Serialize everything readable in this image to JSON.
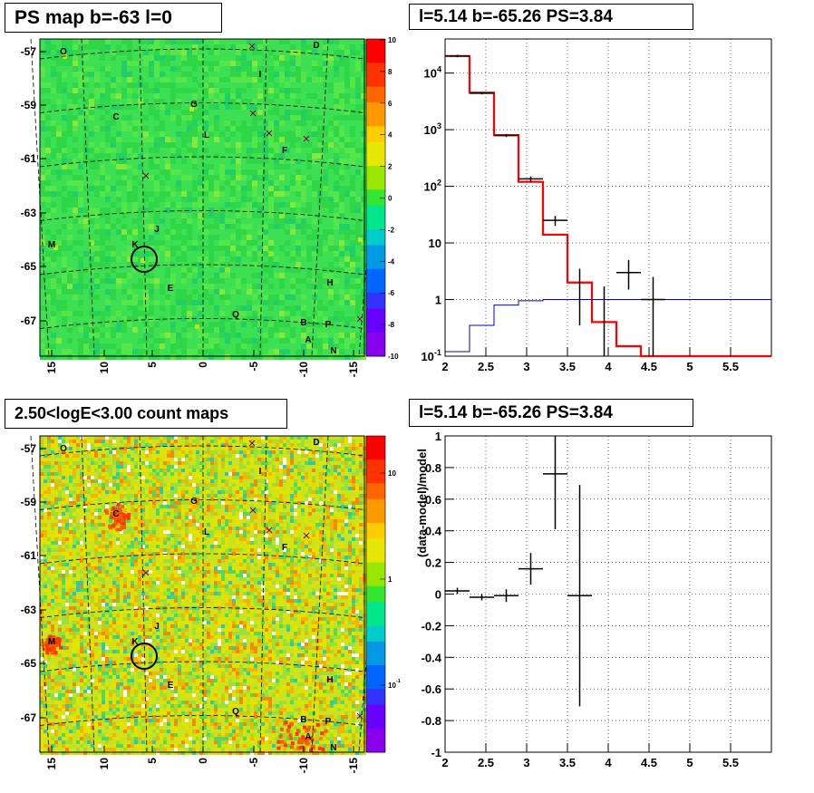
{
  "titles": {
    "ps_map": "PS map b=-63 l=0",
    "spectrum": "l=5.14 b=-65.26 PS=3.84",
    "count_map": "2.50<logE<3.00 count maps",
    "residual": "l=5.14 b=-65.26 PS=3.84"
  },
  "residual_ylabel": "(data-model)/model",
  "colors": {
    "model_red": "#ff0000",
    "model_blue": "#0000cc",
    "data_black": "#000000"
  },
  "sources": [
    "O",
    "D",
    "I",
    "G",
    "C",
    "L",
    "F",
    "J",
    "M",
    "K",
    "E",
    "H",
    "Q",
    "B",
    "P",
    "A",
    "N"
  ],
  "chart_data": [
    {
      "name": "ps_map",
      "type": "heatmap",
      "title": "PS map b=-63 l=0",
      "x_ticks": [
        "15",
        "10",
        "5",
        "0",
        "-5",
        "-10",
        "-15"
      ],
      "y_ticks": [
        "-57",
        "-59",
        "-61",
        "-63",
        "-65",
        "-67"
      ],
      "colorbar_ticks": [
        "10",
        "8",
        "6",
        "4",
        "2",
        "0",
        "-2",
        "-4",
        "-6",
        "-8",
        "-10"
      ],
      "colorbar_range": [
        -10,
        10
      ],
      "marker": {
        "label": "K",
        "l": 5.14,
        "b": -65.26
      },
      "grid": true
    },
    {
      "name": "spectrum",
      "type": "line",
      "title": "l=5.14 b=-65.26 PS=3.84",
      "xlim": [
        2,
        6
      ],
      "ylim": [
        0.1,
        40000
      ],
      "y_scale": "log",
      "x_ticks": [
        "2",
        "2.5",
        "3",
        "3.5",
        "4",
        "4.5",
        "5",
        "5.5"
      ],
      "y_ticks": [
        "10^4",
        "10^3",
        "10^2",
        "10",
        "1",
        "10^-1"
      ],
      "grid": true,
      "series": [
        {
          "kind": "step",
          "color": "red",
          "edges": [
            2.0,
            2.3,
            2.6,
            2.9,
            3.2,
            3.5,
            3.8,
            4.1,
            4.4,
            6.0
          ],
          "values": [
            20000,
            4500,
            800,
            120,
            14,
            2,
            0.4,
            0.15,
            0.1
          ]
        },
        {
          "kind": "step",
          "color": "blue",
          "edges": [
            2.0,
            2.3,
            2.6,
            2.9,
            3.2,
            3.5,
            6.0
          ],
          "values": [
            0.12,
            0.35,
            0.8,
            0.95,
            1.0,
            1.0
          ]
        },
        {
          "kind": "errorbar",
          "color": "black",
          "points": [
            {
              "x": 2.15,
              "y": 20000,
              "xerr": 0.15,
              "ylo": 19000,
              "yhi": 21000
            },
            {
              "x": 2.45,
              "y": 4400,
              "xerr": 0.15,
              "ylo": 4200,
              "yhi": 4600
            },
            {
              "x": 2.75,
              "y": 790,
              "xerr": 0.15,
              "ylo": 740,
              "yhi": 840
            },
            {
              "x": 3.05,
              "y": 135,
              "xerr": 0.15,
              "ylo": 120,
              "yhi": 150
            },
            {
              "x": 3.35,
              "y": 25,
              "xerr": 0.15,
              "ylo": 20,
              "yhi": 30
            },
            {
              "x": 3.65,
              "y": 1.05,
              "xerr": 0.0,
              "ylo": 0.35,
              "yhi": 3.5
            },
            {
              "x": 3.95,
              "y": 1.0,
              "xerr": 0.0,
              "ylo": 0.1,
              "yhi": 1.7
            },
            {
              "x": 4.25,
              "y": 3.0,
              "xerr": 0.15,
              "ylo": 1.5,
              "yhi": 5.0
            },
            {
              "x": 4.55,
              "y": 1.0,
              "xerr": 0.15,
              "ylo": 0.1,
              "yhi": 2.5
            }
          ]
        }
      ]
    },
    {
      "name": "count_map",
      "type": "heatmap",
      "title": "2.50<logE<3.00 count maps",
      "x_ticks": [
        "15",
        "10",
        "5",
        "0",
        "-5",
        "-10",
        "-15"
      ],
      "y_ticks": [
        "-57",
        "-59",
        "-61",
        "-63",
        "-65",
        "-67"
      ],
      "colorbar_ticks": [
        "10",
        "1",
        "10^-1"
      ],
      "colorbar_scale": "log",
      "grid": true
    },
    {
      "name": "residual",
      "type": "scatter",
      "title": "l=5.14 b=-65.26 PS=3.84",
      "ylabel": "(data-model)/model",
      "xlim": [
        2,
        6
      ],
      "ylim": [
        -1,
        1
      ],
      "x_ticks": [
        "2",
        "2.5",
        "3",
        "3.5",
        "4",
        "4.5",
        "5",
        "5.5"
      ],
      "y_ticks": [
        "1",
        "0.8",
        "0.6",
        "0.4",
        "0.2",
        "0",
        "-0.2",
        "-0.4",
        "-0.6",
        "-0.8",
        "-1"
      ],
      "grid": true,
      "points": [
        {
          "x": 2.15,
          "y": 0.02,
          "xerr": 0.15,
          "ylo": 0.0,
          "yhi": 0.04
        },
        {
          "x": 2.45,
          "y": -0.02,
          "xerr": 0.15,
          "ylo": -0.04,
          "yhi": 0.0
        },
        {
          "x": 2.75,
          "y": -0.01,
          "xerr": 0.15,
          "ylo": -0.05,
          "yhi": 0.03
        },
        {
          "x": 3.05,
          "y": 0.16,
          "xerr": 0.15,
          "ylo": 0.06,
          "yhi": 0.26
        },
        {
          "x": 3.35,
          "y": 0.76,
          "xerr": 0.15,
          "ylo": 0.41,
          "yhi": 1.0
        },
        {
          "x": 3.65,
          "y": -0.01,
          "xerr": 0.15,
          "ylo": -0.71,
          "yhi": 0.69
        }
      ]
    }
  ]
}
